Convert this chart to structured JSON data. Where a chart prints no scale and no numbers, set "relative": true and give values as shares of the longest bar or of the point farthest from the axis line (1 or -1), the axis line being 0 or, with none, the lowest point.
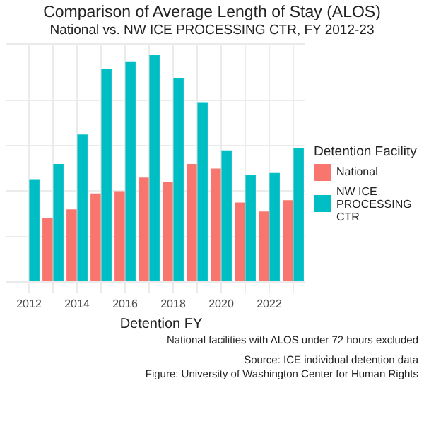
{
  "chart_data": {
    "type": "bar",
    "title": "Comparison of Average Length of Stay (ALOS)",
    "subtitle": "National vs. NW ICE PROCESSING CTR, FY 2012-23",
    "xlabel": "Detention FY",
    "legend_title": "Detention Facility",
    "categories": [
      "2012",
      null,
      "2014",
      null,
      "2016",
      null,
      "2018",
      null,
      "2020",
      null,
      "2022",
      null
    ],
    "relative": true,
    "series": [
      {
        "name": "National",
        "color": "#f8766d",
        "values": [
          null,
          0.28,
          0.32,
          0.39,
          0.4,
          0.46,
          0.44,
          0.52,
          0.5,
          0.35,
          0.31,
          0.36
        ]
      },
      {
        "name": "NW ICE PROCESSING CTR",
        "color": "#00bfc4",
        "values": [
          0.45,
          0.52,
          0.65,
          0.94,
          0.97,
          1,
          0.9,
          0.79,
          0.58,
          0.47,
          0.48,
          0.59
        ]
      }
    ],
    "grid": true,
    "legend": "right",
    "annotations": [
      "National facilities with ALOS under 72 hours excluded",
      "Source: ICE individual detention data",
      "Figure: University of Washington Center for Human Rights"
    ]
  }
}
